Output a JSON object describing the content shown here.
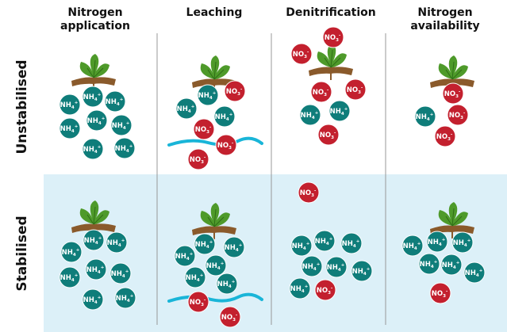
{
  "columns": [
    "Nitrogen application",
    "Leaching",
    "Denitrification",
    "Nitrogen availability"
  ],
  "rows": [
    "Unstabilised",
    "Stabilised"
  ],
  "ions": [
    {
      "base": "NH",
      "sub": "4",
      "sup": "+"
    },
    {
      "base": "NO",
      "sub": "3",
      "sup": "-"
    }
  ]
}
